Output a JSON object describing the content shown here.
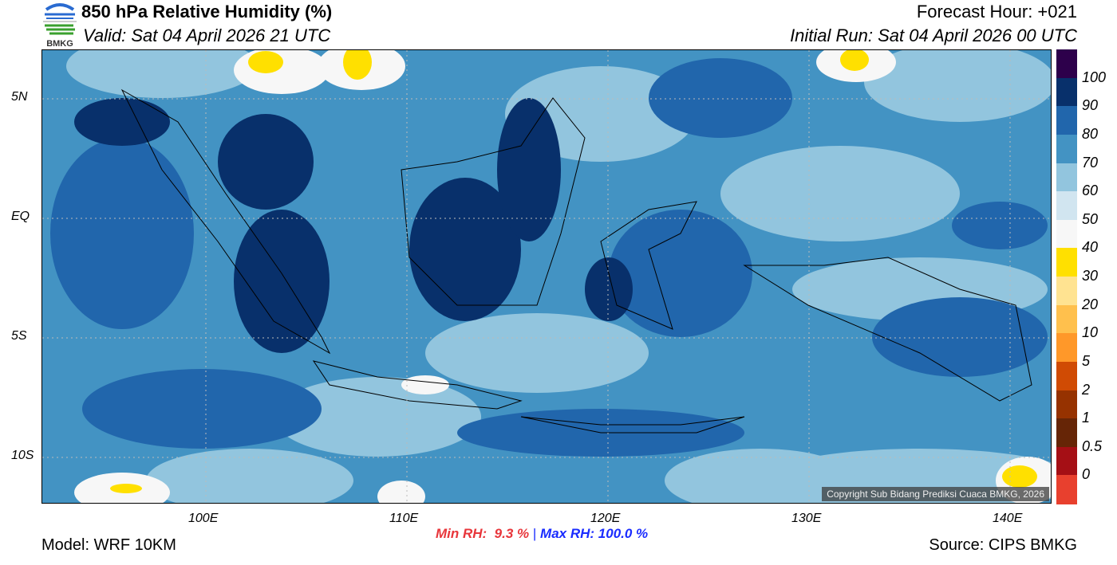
{
  "header": {
    "title": "850 hPa Relative Humidity (%)",
    "valid": "Valid: Sat 04 April 2026 21 UTC",
    "forecast_hour": "Forecast Hour: +021",
    "initial_run": "Initial Run: Sat 04 April 2026 00 UTC",
    "logo_text": "BMKG"
  },
  "map": {
    "lat_labels": [
      "5N",
      "EQ",
      "5S",
      "10S"
    ],
    "lon_labels": [
      "100E",
      "110E",
      "120E",
      "130E",
      "140E"
    ],
    "copyright": "Copyright Sub Bidang Prediksi Cuaca BMKG, 2026"
  },
  "colorbar": {
    "labels": [
      "100",
      "90",
      "80",
      "70",
      "60",
      "50",
      "40",
      "30",
      "20",
      "10",
      "5",
      "2",
      "1",
      "0.5",
      "0"
    ],
    "colors": [
      "#2d004b",
      "#08306b",
      "#2166ac",
      "#4393c3",
      "#92c5de",
      "#d1e5f0",
      "#f7f7f7",
      "#ffe000",
      "#ffe391",
      "#ffc04d",
      "#ff9829",
      "#d04b04",
      "#963200",
      "#662506",
      "#a50f15",
      "#e8402e"
    ]
  },
  "footer": {
    "min_label": "Min RH:",
    "min_value": "9.3 %",
    "sep": "|",
    "max_label": "Max RH:",
    "max_value": "100.0 %",
    "model": "Model: WRF 10KM",
    "source": "Source: CIPS BMKG"
  }
}
